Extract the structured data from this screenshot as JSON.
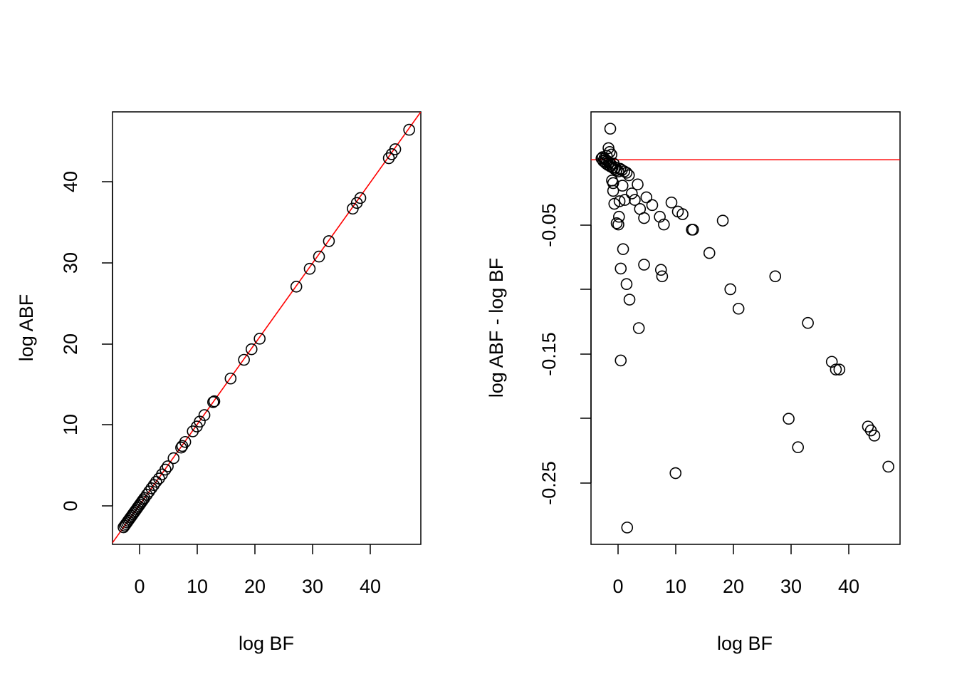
{
  "chart_data": [
    {
      "type": "scatter",
      "xlabel": "log BF",
      "ylabel": "log ABF",
      "xlim": [
        -4.5,
        48.5
      ],
      "ylim": [
        -4.7,
        48.5
      ],
      "xticks": [
        0,
        10,
        20,
        30,
        40
      ],
      "yticks": [
        0,
        10,
        20,
        30,
        40
      ],
      "reference_line": {
        "kind": "identity",
        "slope": 1,
        "intercept": 0,
        "color": "#ff0000"
      },
      "points": [
        {
          "x": -2.6,
          "y": -2.6
        },
        {
          "x": -2.4,
          "y": -2.4
        },
        {
          "x": -2.2,
          "y": -2.2
        },
        {
          "x": -2.0,
          "y": -2.0
        },
        {
          "x": -1.8,
          "y": -1.8
        },
        {
          "x": -1.6,
          "y": -1.6
        },
        {
          "x": -1.4,
          "y": -1.4
        },
        {
          "x": -1.2,
          "y": -1.2
        },
        {
          "x": -1.0,
          "y": -1.0
        },
        {
          "x": -0.8,
          "y": -0.8
        },
        {
          "x": -0.6,
          "y": -0.6
        },
        {
          "x": -0.4,
          "y": -0.4
        },
        {
          "x": -0.2,
          "y": -0.2
        },
        {
          "x": 0.0,
          "y": 0.0
        },
        {
          "x": 0.2,
          "y": 0.2
        },
        {
          "x": 0.4,
          "y": 0.4
        },
        {
          "x": 0.6,
          "y": 0.6
        },
        {
          "x": 0.8,
          "y": 0.8
        },
        {
          "x": 1.0,
          "y": 1.0
        },
        {
          "x": 1.4,
          "y": 1.4
        },
        {
          "x": 1.8,
          "y": 1.8
        },
        {
          "x": 2.2,
          "y": 2.2
        },
        {
          "x": 2.6,
          "y": 2.6
        },
        {
          "x": 3.0,
          "y": 3.0
        },
        {
          "x": 3.5,
          "y": 3.4
        },
        {
          "x": 4.0,
          "y": 3.9
        },
        {
          "x": 4.6,
          "y": 4.5
        },
        {
          "x": 5.0,
          "y": 4.9
        },
        {
          "x": 6.0,
          "y": 5.9
        },
        {
          "x": 7.3,
          "y": 7.2
        },
        {
          "x": 7.5,
          "y": 7.4
        },
        {
          "x": 8.0,
          "y": 7.9
        },
        {
          "x": 9.3,
          "y": 9.2
        },
        {
          "x": 10.0,
          "y": 9.8
        },
        {
          "x": 10.5,
          "y": 10.4
        },
        {
          "x": 11.3,
          "y": 11.2
        },
        {
          "x": 12.8,
          "y": 12.8
        },
        {
          "x": 13.0,
          "y": 12.9
        },
        {
          "x": 15.8,
          "y": 15.7
        },
        {
          "x": 18.1,
          "y": 18.0
        },
        {
          "x": 19.4,
          "y": 19.3
        },
        {
          "x": 20.8,
          "y": 20.6
        },
        {
          "x": 27.1,
          "y": 27.0
        },
        {
          "x": 29.4,
          "y": 29.2
        },
        {
          "x": 31.0,
          "y": 30.7
        },
        {
          "x": 32.7,
          "y": 32.6
        },
        {
          "x": 36.8,
          "y": 36.6
        },
        {
          "x": 37.5,
          "y": 37.3
        },
        {
          "x": 38.1,
          "y": 37.9
        },
        {
          "x": 43.0,
          "y": 42.8
        },
        {
          "x": 43.5,
          "y": 43.3
        },
        {
          "x": 44.1,
          "y": 43.9
        },
        {
          "x": 46.5,
          "y": 46.3
        }
      ]
    },
    {
      "type": "scatter",
      "xlabel": "log BF",
      "ylabel": "log ABF - log BF",
      "xlim": [
        -4.5,
        48.5
      ],
      "ylim": [
        -0.297,
        0.037
      ],
      "xticks": [
        0,
        10,
        20,
        30,
        40
      ],
      "yticks": [
        -0.25,
        -0.15,
        -0.05
      ],
      "ytick_labels": [
        "-0.25",
        "-0.15",
        "-0.05"
      ],
      "reference_line": {
        "kind": "horizontal",
        "y": 0,
        "color": "#ff0000"
      },
      "points": [
        {
          "x": -1.2,
          "y": 0.024
        },
        {
          "x": -1.8,
          "y": 0.003
        },
        {
          "x": -1.5,
          "y": 0.009
        },
        {
          "x": -1.3,
          "y": 0.006
        },
        {
          "x": -1.0,
          "y": 0.004
        },
        {
          "x": -2.5,
          "y": 0.002
        },
        {
          "x": -2.2,
          "y": 0.001
        },
        {
          "x": -2.0,
          "y": 0.0
        },
        {
          "x": -2.7,
          "y": 0.001
        },
        {
          "x": -2.4,
          "y": -0.001
        },
        {
          "x": -2.1,
          "y": -0.002
        },
        {
          "x": -1.9,
          "y": -0.003
        },
        {
          "x": -1.7,
          "y": -0.001
        },
        {
          "x": -1.6,
          "y": -0.004
        },
        {
          "x": -1.4,
          "y": -0.002
        },
        {
          "x": -1.2,
          "y": -0.005
        },
        {
          "x": -1.0,
          "y": -0.004
        },
        {
          "x": -0.8,
          "y": -0.006
        },
        {
          "x": -0.6,
          "y": -0.003
        },
        {
          "x": -0.5,
          "y": -0.007
        },
        {
          "x": -0.3,
          "y": -0.006
        },
        {
          "x": -0.1,
          "y": -0.008
        },
        {
          "x": 0.2,
          "y": -0.009
        },
        {
          "x": 0.5,
          "y": -0.007
        },
        {
          "x": 0.8,
          "y": -0.008
        },
        {
          "x": 1.2,
          "y": -0.009
        },
        {
          "x": 1.6,
          "y": -0.01
        },
        {
          "x": 2.0,
          "y": -0.012
        },
        {
          "x": -0.9,
          "y": -0.016
        },
        {
          "x": -0.7,
          "y": -0.018
        },
        {
          "x": -0.7,
          "y": -0.024
        },
        {
          "x": -0.5,
          "y": -0.034
        },
        {
          "x": 0.4,
          "y": -0.032
        },
        {
          "x": 0.9,
          "y": -0.02
        },
        {
          "x": 1.3,
          "y": -0.031
        },
        {
          "x": 2.5,
          "y": -0.026
        },
        {
          "x": 3.0,
          "y": -0.031
        },
        {
          "x": 3.5,
          "y": -0.019
        },
        {
          "x": 3.9,
          "y": -0.038
        },
        {
          "x": 4.6,
          "y": -0.045
        },
        {
          "x": 5.0,
          "y": -0.029
        },
        {
          "x": 6.0,
          "y": -0.035
        },
        {
          "x": 0.3,
          "y": -0.044
        },
        {
          "x": -0.1,
          "y": -0.049
        },
        {
          "x": 0.2,
          "y": -0.05
        },
        {
          "x": 7.3,
          "y": -0.044
        },
        {
          "x": 8.0,
          "y": -0.05
        },
        {
          "x": 9.3,
          "y": -0.033
        },
        {
          "x": 10.4,
          "y": -0.04
        },
        {
          "x": 11.2,
          "y": -0.042
        },
        {
          "x": 12.8,
          "y": -0.054
        },
        {
          "x": 13.0,
          "y": -0.054
        },
        {
          "x": 18.1,
          "y": -0.047
        },
        {
          "x": 15.8,
          "y": -0.072
        },
        {
          "x": 1.0,
          "y": -0.069
        },
        {
          "x": 0.6,
          "y": -0.084
        },
        {
          "x": 4.6,
          "y": -0.081
        },
        {
          "x": 7.5,
          "y": -0.085
        },
        {
          "x": 7.7,
          "y": -0.09
        },
        {
          "x": 1.6,
          "y": -0.096
        },
        {
          "x": 2.1,
          "y": -0.108
        },
        {
          "x": 3.7,
          "y": -0.13
        },
        {
          "x": 0.6,
          "y": -0.155
        },
        {
          "x": 19.4,
          "y": -0.1
        },
        {
          "x": 20.8,
          "y": -0.115
        },
        {
          "x": 27.1,
          "y": -0.09
        },
        {
          "x": 32.7,
          "y": -0.126
        },
        {
          "x": 36.8,
          "y": -0.156
        },
        {
          "x": 37.5,
          "y": -0.162
        },
        {
          "x": 38.1,
          "y": -0.162
        },
        {
          "x": 29.4,
          "y": -0.2
        },
        {
          "x": 31.0,
          "y": -0.222
        },
        {
          "x": 43.0,
          "y": -0.206
        },
        {
          "x": 43.5,
          "y": -0.209
        },
        {
          "x": 44.1,
          "y": -0.213
        },
        {
          "x": 46.5,
          "y": -0.237
        },
        {
          "x": 10.0,
          "y": -0.242
        },
        {
          "x": 1.7,
          "y": -0.284
        }
      ]
    }
  ]
}
